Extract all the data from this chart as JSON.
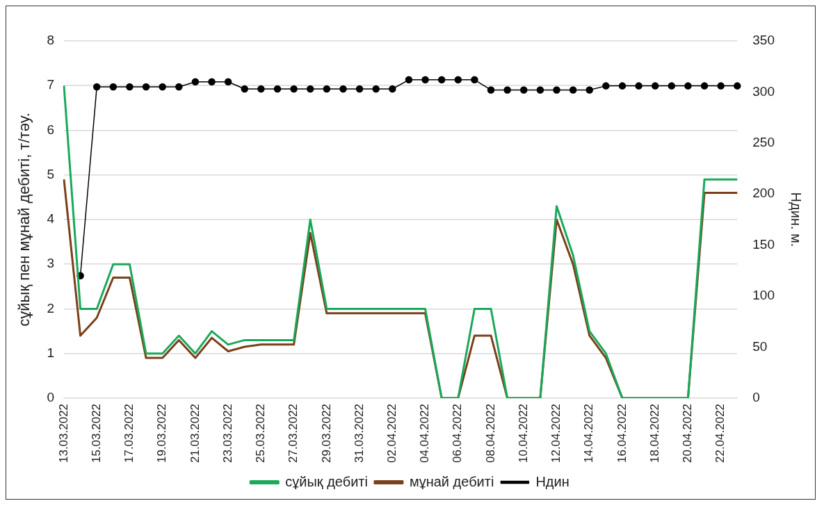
{
  "chart_data": {
    "type": "line",
    "ylabel": "сұйық пен мұнай дебиті, т/тәу.",
    "y2label": "Ндин. м.",
    "categories": [
      "13.03.2022",
      null,
      "15.03.2022",
      null,
      "17.03.2022",
      null,
      "19.03.2022",
      null,
      "21.03.2022",
      null,
      "23.03.2022",
      null,
      "25.03.2022",
      null,
      "27.03.2022",
      null,
      "29.03.2022",
      null,
      "31.03.2022",
      null,
      "02.04.2022",
      null,
      "04.04.2022",
      null,
      "06.04.2022",
      null,
      "08.04.2022",
      null,
      "10.04.2022",
      null,
      "12.04.2022",
      null,
      "14.04.2022",
      null,
      "16.04.2022",
      null,
      "18.04.2022",
      null,
      "20.04.2022",
      null,
      "22.04.2022",
      null
    ],
    "series": [
      {
        "name": "сұйық дебиті",
        "color": "#1aa85a",
        "marker": "none",
        "values": [
          7,
          2,
          2,
          3,
          3,
          1,
          1,
          1.4,
          1,
          1.5,
          1.2,
          1.3,
          1.3,
          1.3,
          1.3,
          4,
          2,
          2,
          2,
          2,
          2,
          2,
          2,
          0,
          0,
          2,
          2,
          0,
          0,
          0,
          4.3,
          3.2,
          1.5,
          1,
          0,
          0,
          0,
          0,
          0,
          4.9,
          4.9,
          4.9
        ]
      },
      {
        "name": "мұнай дебиті",
        "color": "#7b3f1a",
        "marker": "none",
        "values": [
          4.9,
          1.4,
          1.8,
          2.7,
          2.7,
          0.9,
          0.9,
          1.3,
          0.9,
          1.35,
          1.05,
          1.15,
          1.2,
          1.2,
          1.2,
          3.7,
          1.9,
          1.9,
          1.9,
          1.9,
          1.9,
          1.9,
          1.9,
          0,
          0,
          1.4,
          1.4,
          0,
          0,
          0,
          4,
          3,
          1.4,
          0.9,
          0,
          0,
          0,
          0,
          0,
          4.6,
          4.6,
          4.6
        ]
      },
      {
        "name": "Ндин",
        "color": "#000000",
        "marker": "circle",
        "axis": "y2",
        "values": [
          null,
          120,
          305,
          305,
          305,
          305,
          305,
          305,
          310,
          310,
          310,
          303,
          303,
          303,
          303,
          303,
          303,
          303,
          303,
          303,
          303,
          312,
          312,
          312,
          312,
          312,
          302,
          302,
          302,
          302,
          302,
          302,
          302,
          306,
          306,
          306,
          306,
          306,
          306,
          306,
          306,
          306
        ]
      }
    ],
    "ylim": [
      0,
      8
    ],
    "yticks": [
      0,
      1,
      2,
      3,
      4,
      5,
      6,
      7,
      8
    ],
    "y2lim": [
      0,
      350
    ],
    "y2ticks": [
      0,
      50,
      100,
      150,
      200,
      250,
      300,
      350
    ],
    "grid": "y",
    "legend": "bottom"
  }
}
